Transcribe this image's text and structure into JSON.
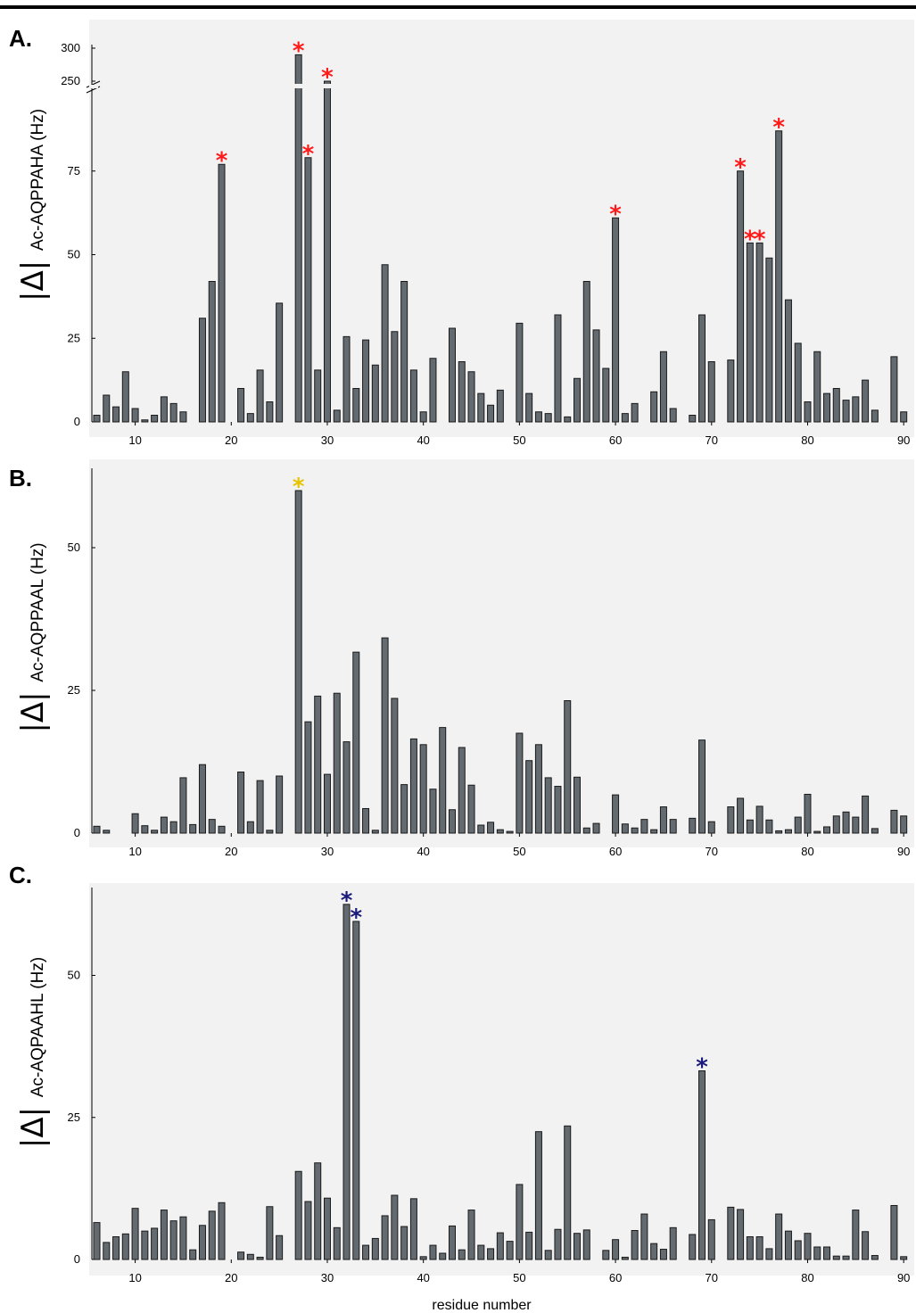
{
  "chart_data": [
    {
      "type": "bar",
      "panel": "A.",
      "ylabel_prefix": "|Δ|",
      "ylabel_text": "Ac-AQPPAHA (Hz)",
      "ylabel_underline_char": "A",
      "ylim": [
        0,
        300
      ],
      "axis_break": [
        110,
        250
      ],
      "yticks": [
        0,
        25,
        50,
        75,
        250,
        300
      ],
      "xticks": [
        10,
        20,
        30,
        40,
        50,
        60,
        70,
        80,
        90
      ],
      "xlim": [
        5,
        90
      ],
      "star_color": "#ff1a1a",
      "x": [
        6,
        7,
        8,
        9,
        10,
        11,
        12,
        13,
        14,
        15,
        17,
        18,
        19,
        21,
        22,
        23,
        24,
        25,
        27,
        28,
        29,
        30,
        31,
        32,
        33,
        34,
        35,
        36,
        37,
        38,
        39,
        40,
        41,
        43,
        44,
        45,
        46,
        47,
        48,
        50,
        51,
        52,
        53,
        54,
        55,
        56,
        57,
        58,
        59,
        60,
        61,
        62,
        64,
        65,
        66,
        68,
        69,
        70,
        72,
        73,
        74,
        75,
        76,
        77,
        78,
        79,
        80,
        81,
        82,
        83,
        84,
        85,
        86,
        87,
        89,
        90
      ],
      "values": [
        2,
        8,
        4.5,
        15,
        4,
        0.6,
        2,
        7.5,
        5.5,
        3,
        31,
        42,
        77,
        10,
        2.5,
        15.5,
        6,
        35.5,
        290,
        79,
        15.5,
        250,
        3.5,
        25.5,
        10,
        24.5,
        17,
        47,
        27,
        42,
        15.5,
        3,
        19,
        28,
        18,
        15,
        8.5,
        5,
        9.5,
        29.5,
        8.5,
        3,
        2.5,
        32,
        1.5,
        13,
        42,
        27.5,
        16,
        61,
        2.5,
        5.5,
        9,
        21,
        4,
        2,
        32,
        18,
        18.5,
        75,
        53.5,
        53.5,
        49,
        87,
        36.5,
        23.5,
        6,
        21,
        8.5,
        10,
        6.5,
        7.5,
        12.5,
        3.5,
        19.5,
        3
      ],
      "starred": [
        19,
        27,
        28,
        30,
        60,
        73,
        74,
        75,
        77
      ]
    },
    {
      "type": "bar",
      "panel": "B.",
      "ylabel_prefix": "|Δ|",
      "ylabel_text": "Ac-AQPPAAL (Hz)",
      "ylabel_underline_char": "L",
      "ylim": [
        0,
        60
      ],
      "yticks": [
        0,
        25,
        50
      ],
      "xticks": [
        10,
        20,
        30,
        40,
        50,
        60,
        70,
        80,
        90
      ],
      "xlim": [
        5,
        90
      ],
      "star_color": "#e6c400",
      "x": [
        6,
        7,
        10,
        11,
        12,
        13,
        14,
        15,
        16,
        17,
        18,
        19,
        21,
        22,
        23,
        24,
        25,
        27,
        28,
        29,
        30,
        31,
        32,
        33,
        34,
        35,
        36,
        37,
        38,
        39,
        40,
        41,
        42,
        43,
        44,
        45,
        46,
        47,
        48,
        49,
        50,
        51,
        52,
        53,
        54,
        55,
        56,
        57,
        58,
        60,
        61,
        62,
        63,
        64,
        65,
        66,
        68,
        69,
        70,
        72,
        73,
        74,
        75,
        76,
        77,
        78,
        79,
        80,
        81,
        82,
        83,
        84,
        85,
        86,
        87,
        89,
        90
      ],
      "values": [
        1.2,
        0.5,
        3.4,
        1.3,
        0.5,
        2.8,
        2,
        9.7,
        1.5,
        12,
        2.4,
        1.2,
        10.7,
        2,
        9.2,
        0.5,
        10,
        60,
        19.5,
        24,
        10.3,
        24.5,
        16,
        31.7,
        4.3,
        0.5,
        34.2,
        23.6,
        8.5,
        16.5,
        15.5,
        7.7,
        18.5,
        4.1,
        15,
        8.4,
        1.4,
        1.9,
        0.6,
        0.3,
        17.5,
        12.7,
        15.5,
        9.7,
        8.2,
        23.2,
        9.8,
        0.9,
        1.7,
        6.7,
        1.6,
        0.9,
        2.4,
        0.6,
        4.6,
        2.4,
        2.6,
        16.3,
        2,
        4.6,
        6.1,
        2.3,
        4.7,
        2.3,
        0.4,
        0.6,
        2.8,
        6.8,
        0.3,
        1.1,
        3,
        3.7,
        2.8,
        6.5,
        0.8,
        4,
        3
      ],
      "starred": [
        27
      ]
    },
    {
      "type": "bar",
      "panel": "C.",
      "ylabel_prefix": "|Δ|",
      "ylabel_text": "Ac-AQPAAHL (Hz)",
      "ylabel_underline_char": "A",
      "ylim": [
        0,
        65
      ],
      "yticks": [
        0,
        25,
        50
      ],
      "xticks": [
        10,
        20,
        30,
        40,
        50,
        60,
        70,
        80,
        90
      ],
      "xlim": [
        5,
        90
      ],
      "xlabel": "residue number",
      "star_color": "#1a1a7a",
      "x": [
        6,
        7,
        8,
        9,
        10,
        11,
        12,
        13,
        14,
        15,
        16,
        17,
        18,
        19,
        21,
        22,
        23,
        24,
        25,
        27,
        28,
        29,
        30,
        31,
        32,
        33,
        34,
        35,
        36,
        37,
        38,
        39,
        40,
        41,
        42,
        43,
        44,
        45,
        46,
        47,
        48,
        49,
        50,
        51,
        52,
        53,
        54,
        55,
        56,
        57,
        59,
        60,
        61,
        62,
        63,
        64,
        65,
        66,
        68,
        69,
        70,
        72,
        73,
        74,
        75,
        76,
        77,
        78,
        79,
        80,
        81,
        82,
        83,
        84,
        85,
        86,
        87,
        89,
        90
      ],
      "values": [
        6.5,
        3,
        4,
        4.5,
        9,
        5,
        5.5,
        8.7,
        6.8,
        7.5,
        1.7,
        6,
        8.5,
        10,
        1.3,
        0.9,
        0.4,
        9.3,
        4.2,
        15.5,
        10.2,
        17,
        10.8,
        5.6,
        62.5,
        59.5,
        2.5,
        3.7,
        7.7,
        11.3,
        5.8,
        10.7,
        0.5,
        2.5,
        1.1,
        5.9,
        1.7,
        8.7,
        2.5,
        1.9,
        4.7,
        3.2,
        13.2,
        4.8,
        22.5,
        1.6,
        5.3,
        23.5,
        4.6,
        5.2,
        1.6,
        3.5,
        0.4,
        5.1,
        8,
        2.8,
        1.8,
        5.6,
        4.4,
        33.2,
        7,
        9.2,
        8.8,
        4,
        4,
        1.9,
        8,
        5,
        3.3,
        4.6,
        2.2,
        2.2,
        0.6,
        0.6,
        8.7,
        4.9,
        0.7,
        9.5,
        0.5
      ],
      "starred": [
        32,
        33,
        69
      ]
    }
  ]
}
